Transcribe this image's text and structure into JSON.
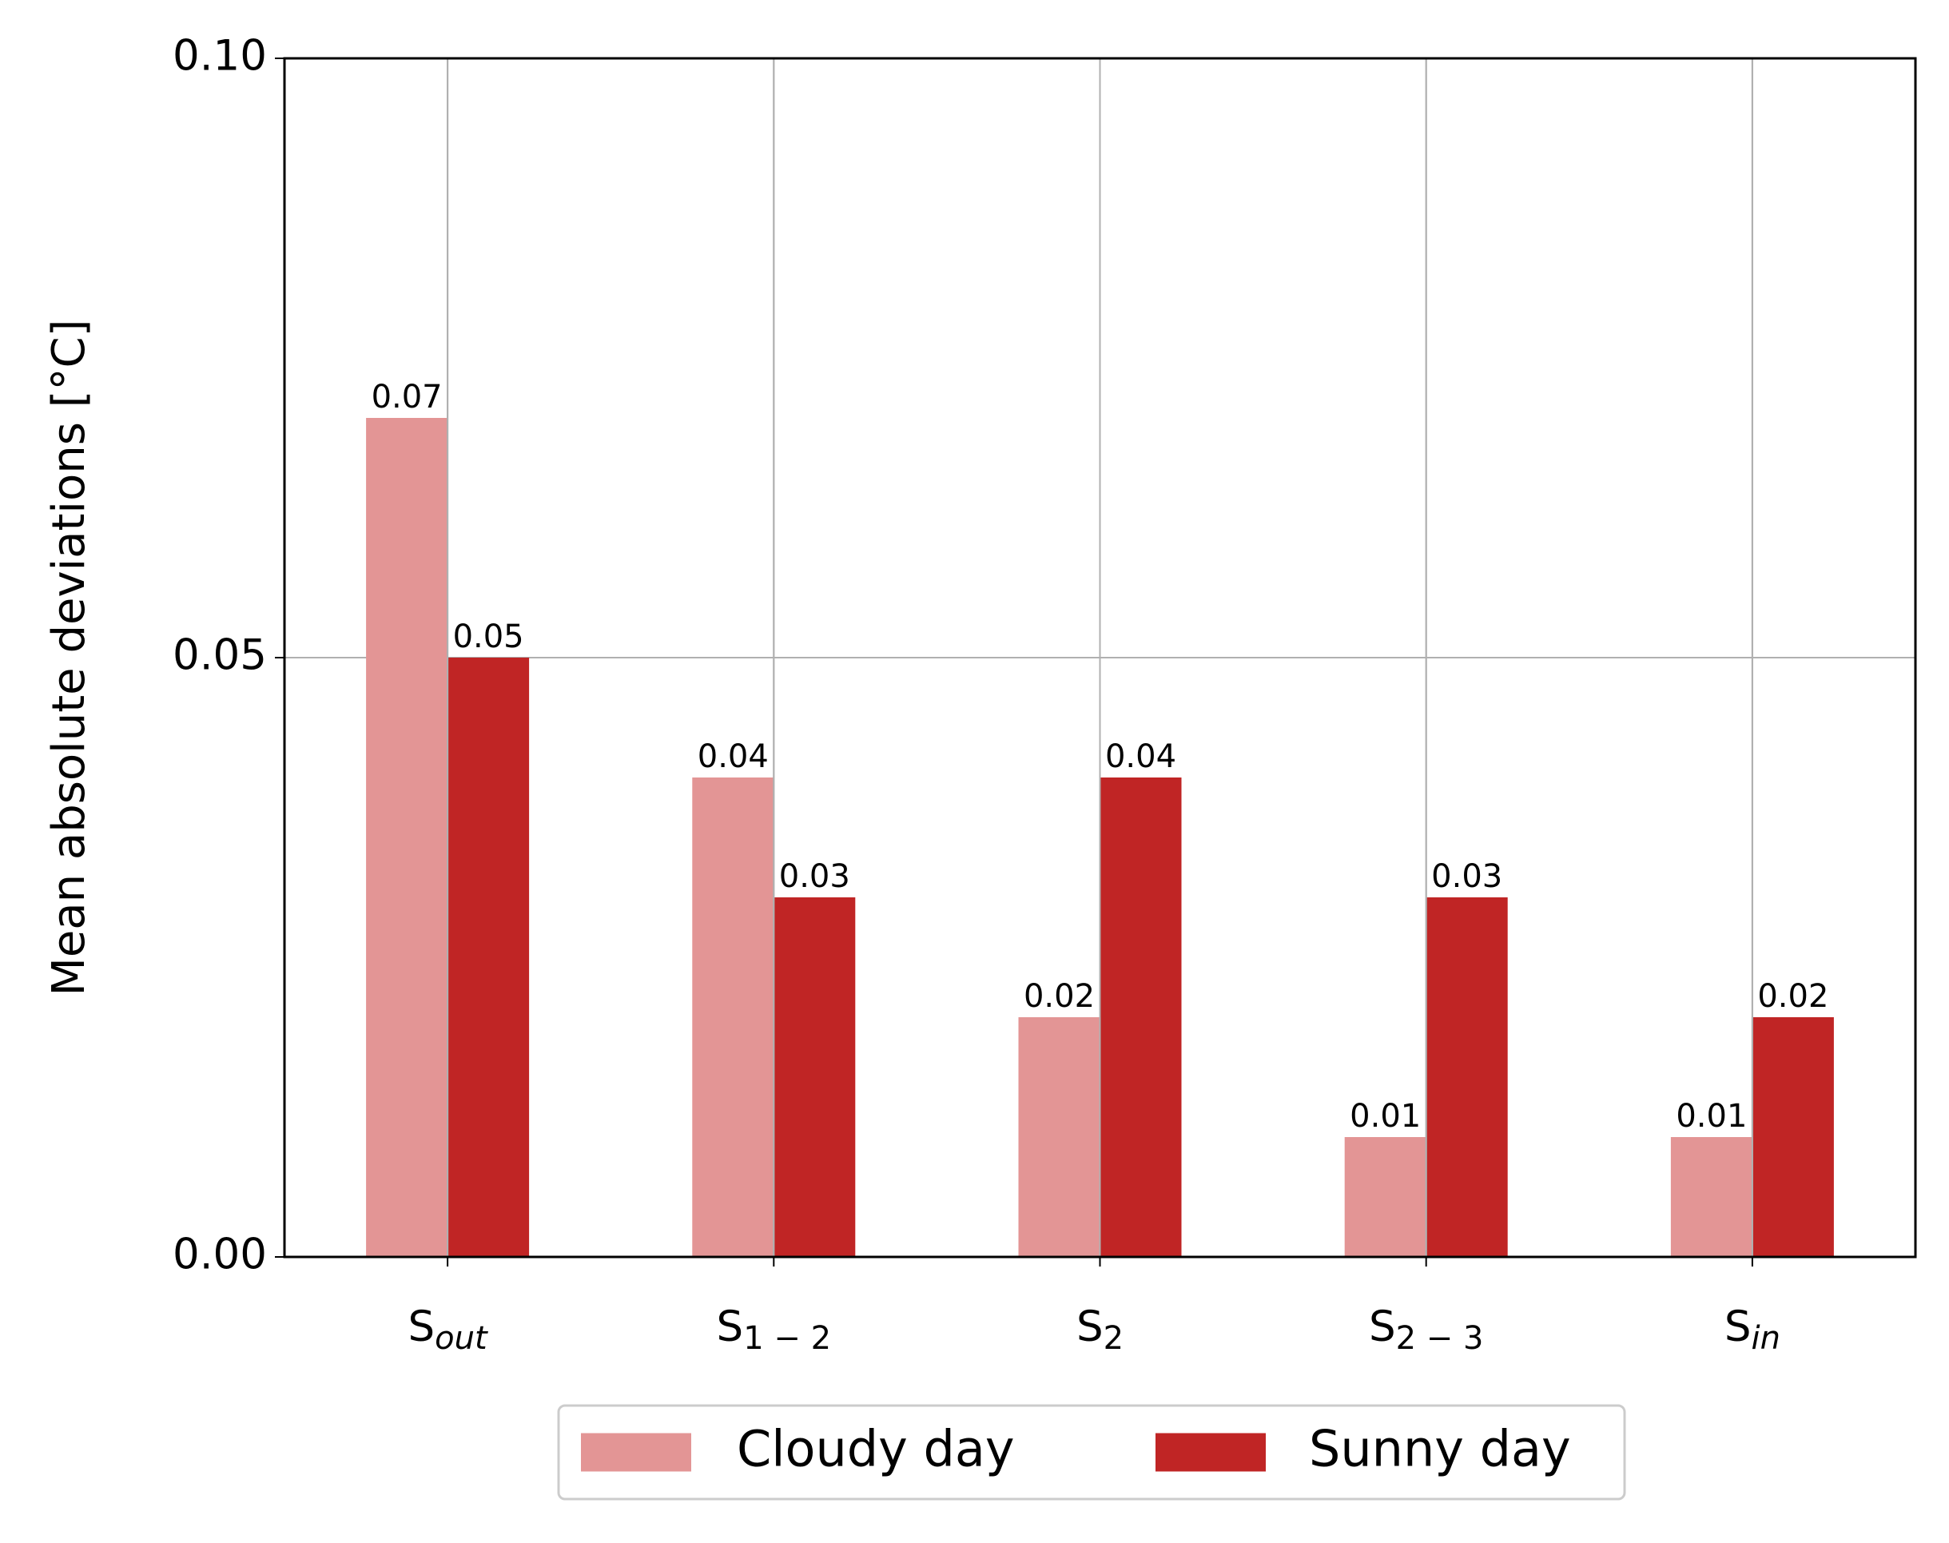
{
  "chart_data": {
    "type": "bar",
    "y_label": "Mean absolute deviations [°C]",
    "categories": [
      [
        "S",
        "out"
      ],
      [
        "S",
        "1 − 2"
      ],
      [
        "S",
        "2"
      ],
      [
        "S",
        "2 − 3"
      ],
      [
        "S",
        "in"
      ]
    ],
    "series": [
      {
        "name": "Cloudy day",
        "color": "#e39595",
        "values": [
          0.07,
          0.04,
          0.02,
          0.01,
          0.01
        ]
      },
      {
        "name": "Sunny day",
        "color": "#c02525",
        "values": [
          0.05,
          0.03,
          0.04,
          0.03,
          0.02
        ]
      }
    ],
    "ylim": [
      0,
      0.1
    ],
    "yticks": [
      {
        "value": 0,
        "label": "0.00"
      },
      {
        "value": 0.05,
        "label": "0.05"
      },
      {
        "value": 0.1,
        "label": "0.10"
      }
    ],
    "grid": true,
    "legend": "bottom"
  }
}
